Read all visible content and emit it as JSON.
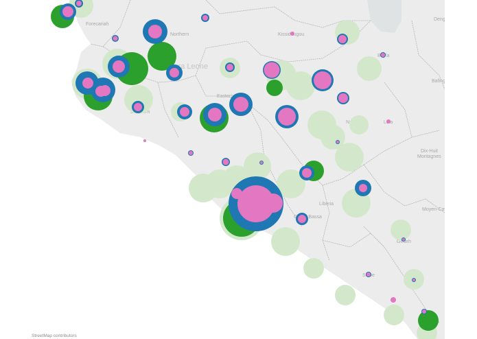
{
  "map": {
    "attribution": "StreetMap contributors",
    "labels": [
      {
        "id": "forecariah",
        "text": "Forecariah"
      },
      {
        "id": "northern",
        "text": "Northern"
      },
      {
        "id": "sierra-leone",
        "text": "Sierra Leone"
      },
      {
        "id": "eastern",
        "text": "Eastern"
      },
      {
        "id": "southern",
        "text": "Southern"
      },
      {
        "id": "kissidougou",
        "text": "Kissidougou"
      },
      {
        "id": "beyla",
        "text": "Beyla"
      },
      {
        "id": "bafing",
        "text": "Bafing"
      },
      {
        "id": "denguele",
        "text": "Deng"
      },
      {
        "id": "nzerekore",
        "text": "Nzérékoré"
      },
      {
        "id": "lola",
        "text": "Lola"
      },
      {
        "id": "dix-huit",
        "text": "Dix-Huit"
      },
      {
        "id": "montagnes",
        "text": "Montagnes"
      },
      {
        "id": "liberia",
        "text": "Liberia"
      },
      {
        "id": "grand-bassa",
        "text": "Grand Bassa"
      },
      {
        "id": "moyen-cavally",
        "text": "Moyen-Cavally"
      },
      {
        "id": "grand-gedeh",
        "text": "Gedeh"
      },
      {
        "id": "sinoe",
        "text": "Sinoe"
      }
    ]
  },
  "layers": {
    "light": {
      "color": "#d3e8cb"
    },
    "green": {
      "color": "#2ca02c"
    },
    "blue": {
      "color": "#1f77b4"
    },
    "pink": {
      "color": "#e377c2"
    }
  },
  "colors": {
    "land": "#ececec",
    "water_inland": "#dfe3e3",
    "border": "#b5b5b5",
    "river": "#ffffff"
  }
}
